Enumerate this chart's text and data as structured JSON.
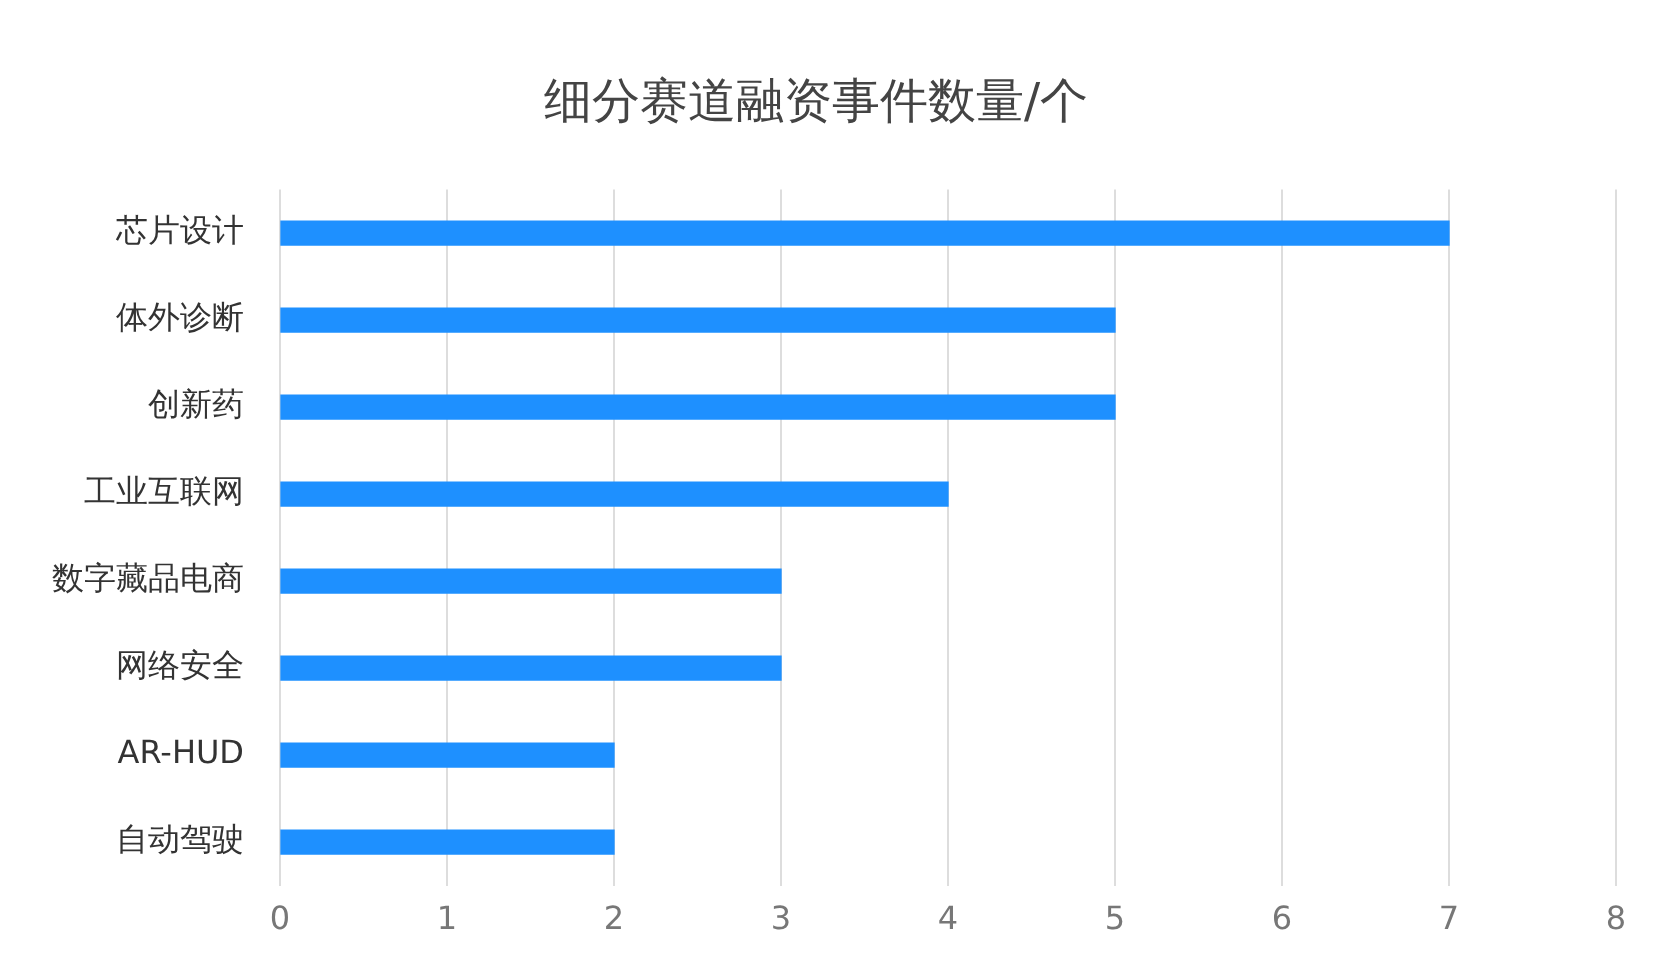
{
  "chart_data": {
    "type": "bar",
    "orientation": "horizontal",
    "title": "细分赛道融资事件数量/个",
    "categories": [
      "芯片设计",
      "体外诊断",
      "创新药",
      "工业互联网",
      "数字藏品电商",
      "网络安全",
      "AR-HUD",
      "自动驾驶"
    ],
    "values": [
      7,
      5,
      5,
      4,
      3,
      3,
      2,
      2
    ],
    "color": "#1e90ff",
    "xlim": [
      0,
      8
    ],
    "xticks": [
      0,
      1,
      2,
      3,
      4,
      5,
      6,
      7,
      8
    ],
    "grid": "x"
  }
}
